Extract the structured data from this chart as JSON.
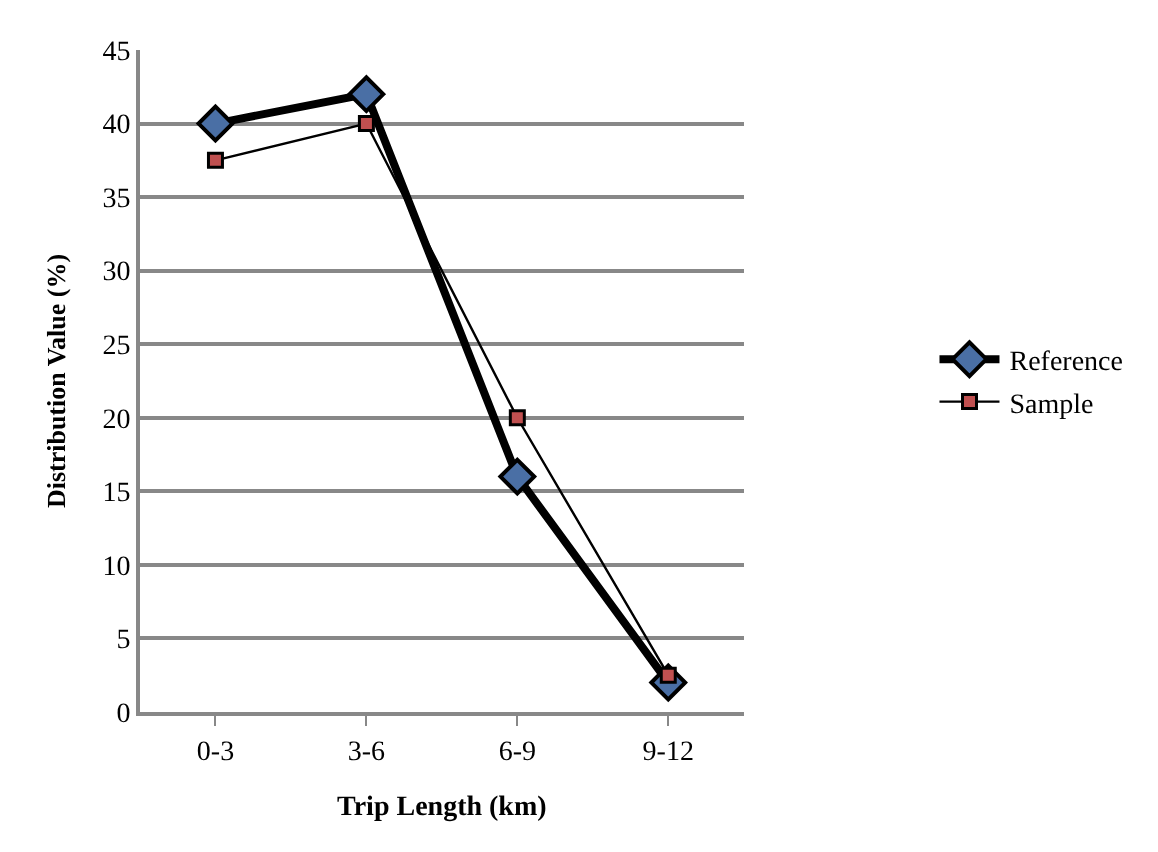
{
  "chart_data": {
    "type": "line",
    "xlabel": "Trip Length (km)",
    "ylabel": "Distribution Value (%)",
    "categories": [
      "0-3",
      "3-6",
      "6-9",
      "9-12"
    ],
    "series": [
      {
        "name": "Reference",
        "color": "#000000",
        "marker": "diamond",
        "values": [
          40,
          42,
          16,
          2
        ]
      },
      {
        "name": "Sample",
        "color": "#000000",
        "marker": "square",
        "values": [
          37.5,
          40,
          20,
          2.5
        ]
      }
    ],
    "ylim": [
      0,
      45
    ],
    "yticks": [
      0,
      5,
      10,
      15,
      20,
      25,
      30,
      35,
      40,
      45
    ],
    "grid": "y",
    "legend": "right",
    "line_style": "solid"
  }
}
